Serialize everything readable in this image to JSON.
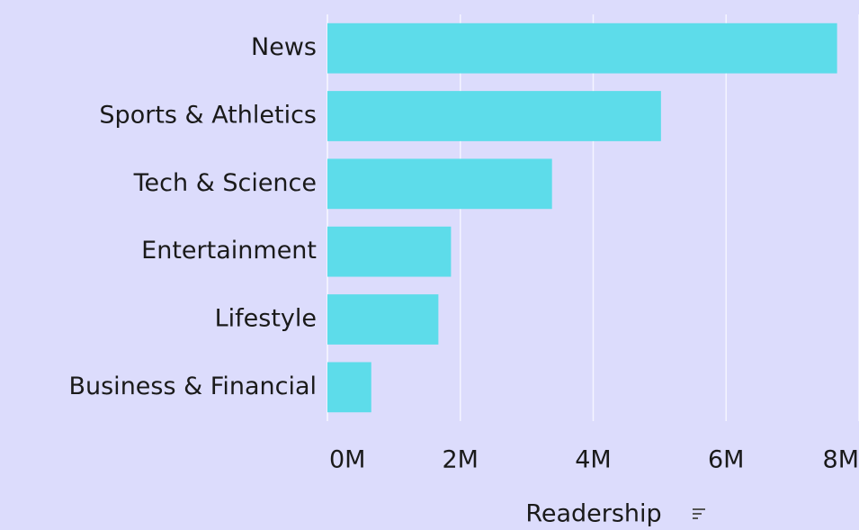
{
  "chart_data": {
    "type": "bar",
    "orientation": "horizontal",
    "categories": [
      "News",
      "Sports & Athletics",
      "Tech & Science",
      "Entertainment",
      "Lifestyle",
      "Business & Financial"
    ],
    "values": [
      7670000,
      5020000,
      3380000,
      1860000,
      1670000,
      660000
    ],
    "color": "#5ddcea",
    "xlim": [
      0,
      8000000
    ],
    "xticks": [
      {
        "value": 0,
        "label": "0M"
      },
      {
        "value": 2000000,
        "label": "2M"
      },
      {
        "value": 4000000,
        "label": "4M"
      },
      {
        "value": 6000000,
        "label": "6M"
      },
      {
        "value": 8000000,
        "label": "8M"
      }
    ],
    "xlabel": "Readership",
    "grid": true
  }
}
